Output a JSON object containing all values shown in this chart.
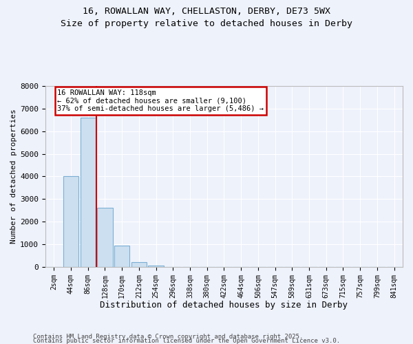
{
  "title_line1": "16, ROWALLAN WAY, CHELLASTON, DERBY, DE73 5WX",
  "title_line2": "Size of property relative to detached houses in Derby",
  "xlabel": "Distribution of detached houses by size in Derby",
  "ylabel": "Number of detached properties",
  "categories": [
    "2sqm",
    "44sqm",
    "86sqm",
    "128sqm",
    "170sqm",
    "212sqm",
    "254sqm",
    "296sqm",
    "338sqm",
    "380sqm",
    "422sqm",
    "464sqm",
    "506sqm",
    "547sqm",
    "589sqm",
    "631sqm",
    "673sqm",
    "715sqm",
    "757sqm",
    "799sqm",
    "841sqm"
  ],
  "values": [
    0,
    4000,
    6600,
    2600,
    950,
    200,
    50,
    10,
    4,
    2,
    1,
    0,
    0,
    0,
    0,
    0,
    0,
    0,
    0,
    0,
    0
  ],
  "bar_color": "#ccdff0",
  "bar_edge_color": "#7bafd4",
  "red_line_x": 2.5,
  "annotation_text": "16 ROWALLAN WAY: 118sqm\n← 62% of detached houses are smaller (9,100)\n37% of semi-detached houses are larger (5,486) →",
  "annotation_box_color": "#ffffff",
  "annotation_box_edge_color": "#cc0000",
  "ylim": [
    0,
    8000
  ],
  "yticks": [
    0,
    1000,
    2000,
    3000,
    4000,
    5000,
    6000,
    7000,
    8000
  ],
  "bg_color": "#eef2fb",
  "grid_color": "#ffffff",
  "footer_line1": "Contains HM Land Registry data © Crown copyright and database right 2025.",
  "footer_line2": "Contains public sector information licensed under the Open Government Licence v3.0."
}
